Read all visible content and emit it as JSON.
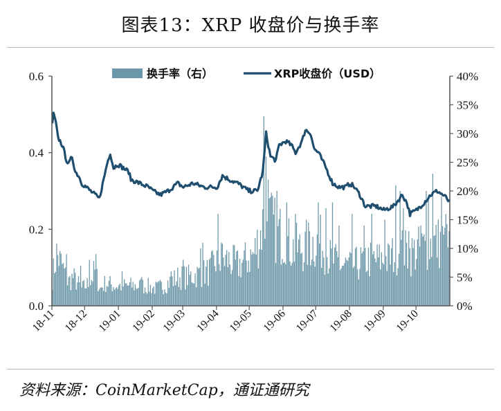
{
  "title": "图表13：XRP 收盘价与换手率",
  "source": "资料来源：CoinMarketCap，通证通研究",
  "colors": {
    "line": "#1f4e6e",
    "bar": "#6b97a8",
    "axis": "#555555"
  },
  "chart_data": {
    "type": "bar+line",
    "legend": {
      "placement": "top-center",
      "entries": [
        "换手率（右）",
        "XRP收盘价（USD）"
      ]
    },
    "x_tick_labels": [
      "18-11",
      "18-12",
      "19-01",
      "19-02",
      "19-03",
      "19-04",
      "19-05",
      "19-06",
      "19-07",
      "19-08",
      "19-09",
      "19-10"
    ],
    "y_left": {
      "min": 0,
      "max": 0.6,
      "tick_labels": [
        "0.0",
        "0.2",
        "0.4",
        "0.6"
      ]
    },
    "y_right": {
      "min": 0,
      "max": 40,
      "tick_labels": [
        "0%",
        "5%",
        "10%",
        "15%",
        "20%",
        "25%",
        "30%",
        "35%",
        "40%"
      ]
    },
    "series": [
      {
        "name": "换手率（右）",
        "type": "bar",
        "axis": "right",
        "anchors": [
          [
            "2018-11-01",
            5
          ],
          [
            "2018-11-05",
            9
          ],
          [
            "2018-11-10",
            7
          ],
          [
            "2018-11-15",
            4
          ],
          [
            "2018-11-20",
            5
          ],
          [
            "2018-11-28",
            3
          ],
          [
            "2018-12-05",
            4
          ],
          [
            "2018-12-10",
            6
          ],
          [
            "2018-12-15",
            3
          ],
          [
            "2018-12-20",
            4
          ],
          [
            "2018-12-28",
            3.5
          ],
          [
            "2019-01-05",
            3.5
          ],
          [
            "2019-01-15",
            3.5
          ],
          [
            "2019-01-25",
            3.5
          ],
          [
            "2019-02-05",
            3
          ],
          [
            "2019-02-15",
            4
          ],
          [
            "2019-02-25",
            5
          ],
          [
            "2019-03-05",
            5
          ],
          [
            "2019-03-15",
            5.5
          ],
          [
            "2019-03-25",
            6
          ],
          [
            "2019-04-01",
            8
          ],
          [
            "2019-04-10",
            8
          ],
          [
            "2019-04-20",
            7
          ],
          [
            "2019-04-28",
            8
          ],
          [
            "2019-05-05",
            9
          ],
          [
            "2019-05-10",
            12
          ],
          [
            "2019-05-16",
            16
          ],
          [
            "2019-05-25",
            13
          ],
          [
            "2019-06-01",
            12
          ],
          [
            "2019-06-10",
            10
          ],
          [
            "2019-06-20",
            10
          ],
          [
            "2019-06-28",
            11
          ],
          [
            "2019-07-05",
            11
          ],
          [
            "2019-07-15",
            8
          ],
          [
            "2019-07-25",
            7
          ],
          [
            "2019-08-05",
            7
          ],
          [
            "2019-08-15",
            8
          ],
          [
            "2019-08-25",
            8
          ],
          [
            "2019-09-05",
            8
          ],
          [
            "2019-09-15",
            10
          ],
          [
            "2019-09-25",
            9
          ],
          [
            "2019-10-05",
            10
          ],
          [
            "2019-10-15",
            11
          ],
          [
            "2019-10-25",
            11
          ],
          [
            "2019-10-31",
            10
          ]
        ],
        "spikes": [
          [
            "2018-11-14",
            9
          ],
          [
            "2018-11-27",
            7
          ],
          [
            "2018-12-05",
            8
          ],
          [
            "2018-12-11",
            9
          ],
          [
            "2019-01-04",
            6
          ],
          [
            "2019-01-22",
            5
          ],
          [
            "2019-02-18",
            6
          ],
          [
            "2019-03-01",
            8
          ],
          [
            "2019-03-17",
            10
          ],
          [
            "2019-03-19",
            11
          ],
          [
            "2019-04-02",
            16
          ],
          [
            "2019-04-05",
            11
          ],
          [
            "2019-05-14",
            33
          ],
          [
            "2019-05-16",
            26
          ],
          [
            "2019-05-18",
            22
          ],
          [
            "2019-05-26",
            20
          ],
          [
            "2019-06-04",
            18
          ],
          [
            "2019-06-12",
            16
          ],
          [
            "2019-06-22",
            15
          ],
          [
            "2019-06-25",
            13
          ],
          [
            "2019-07-03",
            18
          ],
          [
            "2019-07-10",
            17
          ],
          [
            "2019-07-16",
            18
          ],
          [
            "2019-07-22",
            14
          ],
          [
            "2019-08-03",
            16
          ],
          [
            "2019-08-14",
            14
          ],
          [
            "2019-08-21",
            16
          ],
          [
            "2019-09-02",
            15
          ],
          [
            "2019-09-12",
            21
          ],
          [
            "2019-09-16",
            20
          ],
          [
            "2019-09-19",
            17
          ],
          [
            "2019-09-24",
            13
          ],
          [
            "2019-10-05",
            14
          ],
          [
            "2019-10-10",
            20
          ],
          [
            "2019-10-12",
            19
          ],
          [
            "2019-10-16",
            23
          ],
          [
            "2019-10-24",
            19
          ],
          [
            "2019-10-28",
            16
          ],
          [
            "2019-10-31",
            13
          ]
        ]
      },
      {
        "name": "XRP收盘价（USD）",
        "type": "line",
        "axis": "left",
        "anchors": [
          [
            "2018-11-01",
            0.48
          ],
          [
            "2018-11-02",
            0.5
          ],
          [
            "2018-11-04",
            0.48
          ],
          [
            "2018-11-06",
            0.44
          ],
          [
            "2018-11-10",
            0.42
          ],
          [
            "2018-11-14",
            0.38
          ],
          [
            "2018-11-16",
            0.37
          ],
          [
            "2018-11-19",
            0.39
          ],
          [
            "2018-11-22",
            0.35
          ],
          [
            "2018-11-25",
            0.34
          ],
          [
            "2018-11-28",
            0.32
          ],
          [
            "2018-12-02",
            0.31
          ],
          [
            "2018-12-06",
            0.3
          ],
          [
            "2018-12-10",
            0.29
          ],
          [
            "2018-12-14",
            0.28
          ],
          [
            "2018-12-18",
            0.33
          ],
          [
            "2018-12-21",
            0.37
          ],
          [
            "2018-12-24",
            0.4
          ],
          [
            "2018-12-27",
            0.36
          ],
          [
            "2018-12-31",
            0.37
          ],
          [
            "2019-01-05",
            0.36
          ],
          [
            "2019-01-10",
            0.35
          ],
          [
            "2019-01-12",
            0.33
          ],
          [
            "2019-01-20",
            0.32
          ],
          [
            "2019-01-28",
            0.31
          ],
          [
            "2019-02-01",
            0.3
          ],
          [
            "2019-02-08",
            0.29
          ],
          [
            "2019-02-15",
            0.3
          ],
          [
            "2019-02-24",
            0.32
          ],
          [
            "2019-03-01",
            0.31
          ],
          [
            "2019-03-10",
            0.32
          ],
          [
            "2019-03-20",
            0.31
          ],
          [
            "2019-04-01",
            0.31
          ],
          [
            "2019-04-06",
            0.34
          ],
          [
            "2019-04-12",
            0.33
          ],
          [
            "2019-04-20",
            0.32
          ],
          [
            "2019-04-30",
            0.3
          ],
          [
            "2019-05-08",
            0.3
          ],
          [
            "2019-05-13",
            0.35
          ],
          [
            "2019-05-16",
            0.45
          ],
          [
            "2019-05-20",
            0.39
          ],
          [
            "2019-05-25",
            0.38
          ],
          [
            "2019-05-28",
            0.42
          ],
          [
            "2019-06-03",
            0.43
          ],
          [
            "2019-06-08",
            0.42
          ],
          [
            "2019-06-12",
            0.4
          ],
          [
            "2019-06-18",
            0.43
          ],
          [
            "2019-06-21",
            0.46
          ],
          [
            "2019-06-26",
            0.45
          ],
          [
            "2019-06-29",
            0.41
          ],
          [
            "2019-07-03",
            0.4
          ],
          [
            "2019-07-10",
            0.36
          ],
          [
            "2019-07-16",
            0.32
          ],
          [
            "2019-07-22",
            0.31
          ],
          [
            "2019-07-28",
            0.31
          ],
          [
            "2019-08-01",
            0.32
          ],
          [
            "2019-08-05",
            0.31
          ],
          [
            "2019-08-10",
            0.29
          ],
          [
            "2019-08-15",
            0.26
          ],
          [
            "2019-08-25",
            0.26
          ],
          [
            "2019-09-01",
            0.25
          ],
          [
            "2019-09-10",
            0.26
          ],
          [
            "2019-09-18",
            0.29
          ],
          [
            "2019-09-22",
            0.27
          ],
          [
            "2019-09-25",
            0.24
          ],
          [
            "2019-10-01",
            0.25
          ],
          [
            "2019-10-08",
            0.27
          ],
          [
            "2019-10-14",
            0.29
          ],
          [
            "2019-10-20",
            0.3
          ],
          [
            "2019-10-25",
            0.29
          ],
          [
            "2019-10-29",
            0.28
          ],
          [
            "2019-10-31",
            0.27
          ]
        ]
      }
    ]
  }
}
